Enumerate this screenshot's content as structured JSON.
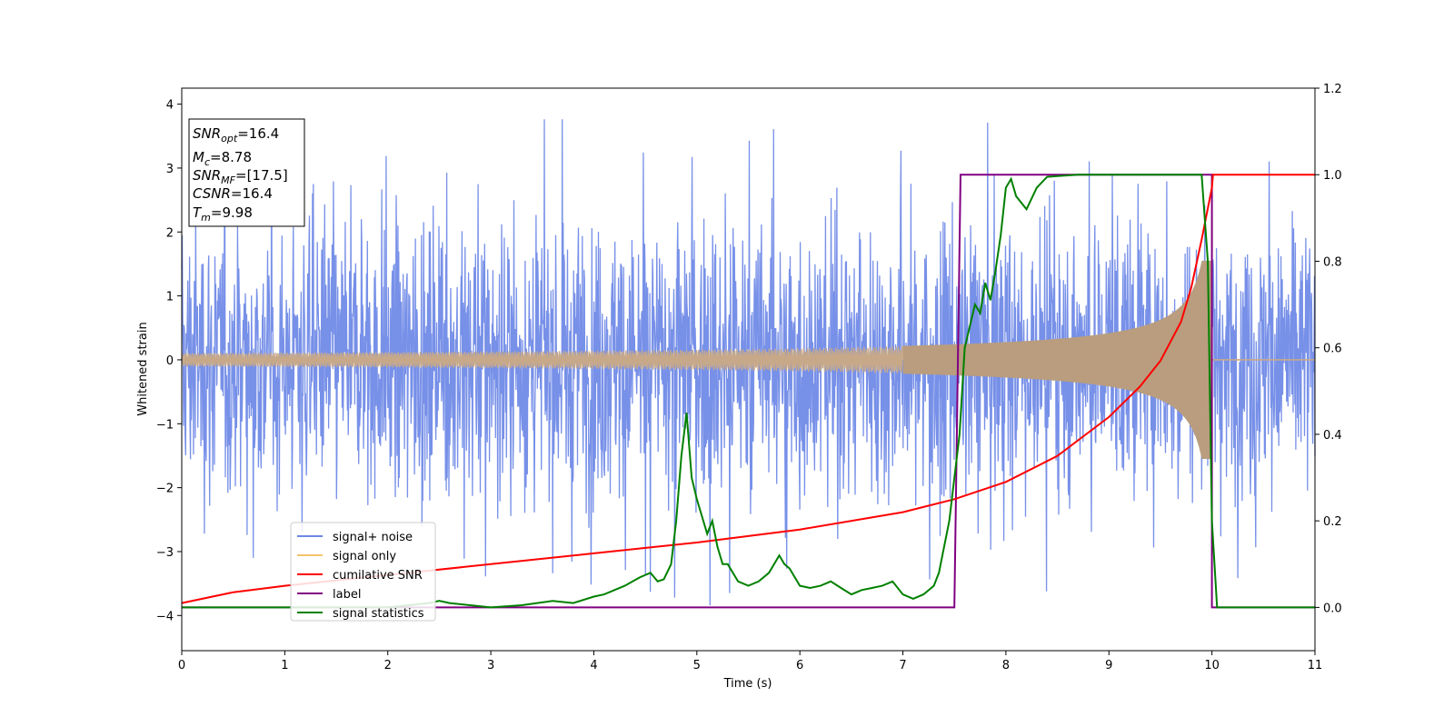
{
  "chart_data": {
    "type": "line",
    "xlabel": "Time (s)",
    "ylabel": "Whitened strain",
    "xlim": [
      0,
      11
    ],
    "ylim": [
      -4.55,
      4.25
    ],
    "y2lim": [
      -0.1,
      1.2
    ],
    "xticks": [
      "0",
      "1",
      "2",
      "3",
      "4",
      "5",
      "6",
      "7",
      "8",
      "9",
      "10",
      "11"
    ],
    "yticks": [
      "−4",
      "−3",
      "−2",
      "−1",
      "0",
      "1",
      "2",
      "3",
      "4"
    ],
    "y2ticks": [
      "0.0",
      "0.2",
      "0.4",
      "0.6",
      "0.8",
      "1.0",
      "1.2"
    ],
    "legend_position": "lower-left",
    "colors": {
      "signal_noise": "#6b87e6",
      "signal_only": "#f5c36b",
      "cumulative_snr": "#ff0000",
      "label": "#800080",
      "signal_statistics": "#008000"
    },
    "info_box": {
      "snr_opt_base": "SNR",
      "snr_opt_sub": "opt",
      "snr_opt_val": "=16.4",
      "mc_base": "M",
      "mc_sub": "c",
      "mc_val": "=8.78",
      "snr_mf_base": "SNR",
      "snr_mf_sub": "MF",
      "snr_mf_val": "=[17.5]",
      "csnr_base": "CSNR",
      "csnr_val": "=16.4",
      "tm_base": "T",
      "tm_sub": "m",
      "tm_val": "=9.98"
    },
    "series": [
      {
        "name": "signal+ noise",
        "axis": "left",
        "description": "noisy whitened strain, approx amplitude ±2.5 with spikes to ±3.8",
        "amplitude": 1.5,
        "spike_max": 3.85
      },
      {
        "name": "signal only",
        "axis": "left",
        "chirp_start_amplitude": 0.1,
        "chirp_peak_amplitude": 1.55,
        "merger_time": 9.98,
        "end_time": 10.0
      },
      {
        "name": "cumilative SNR",
        "axis": "right",
        "x": [
          0,
          0.5,
          1,
          2,
          3,
          4,
          5,
          6,
          7,
          7.5,
          8,
          8.5,
          9,
          9.3,
          9.5,
          9.7,
          9.8,
          9.9,
          10.0,
          10.01,
          11
        ],
        "y": [
          0.01,
          0.035,
          0.05,
          0.075,
          0.1,
          0.125,
          0.15,
          0.18,
          0.22,
          0.25,
          0.29,
          0.35,
          0.44,
          0.51,
          0.57,
          0.66,
          0.74,
          0.85,
          0.97,
          1.0,
          1.0
        ]
      },
      {
        "name": "label",
        "axis": "right",
        "x": [
          0,
          7.5,
          7.56,
          10.0,
          10.0,
          11
        ],
        "y": [
          0,
          0,
          1,
          1,
          0,
          0
        ]
      },
      {
        "name": "signal statistics",
        "axis": "right",
        "x": [
          0,
          0.5,
          1,
          1.5,
          2,
          2.4,
          2.5,
          2.6,
          2.8,
          3,
          3.3,
          3.6,
          3.8,
          4,
          4.1,
          4.3,
          4.45,
          4.55,
          4.62,
          4.68,
          4.75,
          4.8,
          4.85,
          4.9,
          4.95,
          5.0,
          5.1,
          5.15,
          5.2,
          5.25,
          5.3,
          5.4,
          5.5,
          5.6,
          5.7,
          5.8,
          5.85,
          5.9,
          6.0,
          6.1,
          6.2,
          6.3,
          6.4,
          6.5,
          6.6,
          6.7,
          6.8,
          6.9,
          7.0,
          7.1,
          7.2,
          7.3,
          7.35,
          7.45,
          7.55,
          7.6,
          7.7,
          7.75,
          7.8,
          7.85,
          7.9,
          7.95,
          8.0,
          8.05,
          8.1,
          8.2,
          8.3,
          8.4,
          8.5,
          8.7,
          9.0,
          9.5,
          9.9,
          9.96,
          10.0,
          10.05,
          11
        ],
        "y": [
          0,
          0.0,
          0.0,
          0.0,
          0.0,
          0.01,
          0.015,
          0.01,
          0.005,
          0.0,
          0.005,
          0.015,
          0.01,
          0.025,
          0.03,
          0.05,
          0.07,
          0.08,
          0.06,
          0.065,
          0.1,
          0.2,
          0.35,
          0.45,
          0.3,
          0.25,
          0.17,
          0.2,
          0.14,
          0.1,
          0.1,
          0.06,
          0.05,
          0.06,
          0.08,
          0.12,
          0.1,
          0.09,
          0.05,
          0.045,
          0.05,
          0.06,
          0.045,
          0.03,
          0.04,
          0.045,
          0.05,
          0.06,
          0.03,
          0.02,
          0.03,
          0.05,
          0.08,
          0.2,
          0.4,
          0.6,
          0.7,
          0.68,
          0.75,
          0.71,
          0.78,
          0.86,
          0.97,
          0.99,
          0.95,
          0.92,
          0.97,
          0.995,
          0.997,
          1.0,
          1.0,
          1.0,
          1.0,
          0.8,
          0.2,
          0.0,
          0.0
        ]
      }
    ]
  }
}
